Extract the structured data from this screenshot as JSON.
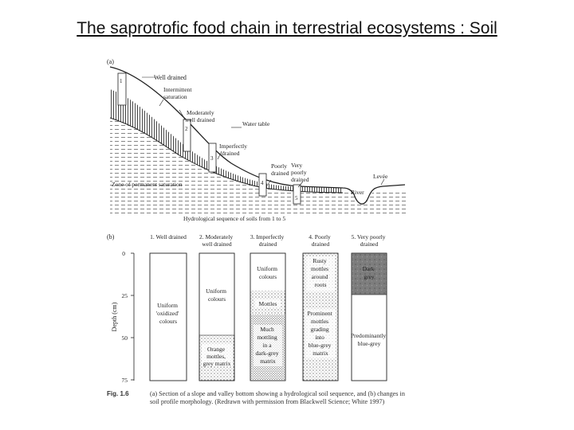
{
  "slide": {
    "title": "The saprotrofic food chain in terrestrial ecosystems : Soil"
  },
  "panel_a": {
    "label": "(a)",
    "annotations": {
      "well_drained": "Well drained",
      "intermittent": [
        "Intermittent",
        "saturation"
      ],
      "moderately": [
        "Moderately",
        "well drained"
      ],
      "water_table": "Water table",
      "imperfectly": [
        "Imperfectly",
        "drained"
      ],
      "poorly": [
        "Poorly",
        "drained"
      ],
      "very_poorly": [
        "Very",
        "poorly",
        "drained"
      ],
      "levee": "Levée",
      "river": "River",
      "zone": "Zone of permanent saturation"
    },
    "profile_numbers": [
      "1",
      "2",
      "3",
      "4",
      "5"
    ],
    "axis_caption": "Hydrological sequence of soils from 1 to 5"
  },
  "panel_b": {
    "label": "(b)",
    "y_axis_label": "Depth (cm)",
    "y_ticks": [
      "0",
      "25",
      "50",
      "75"
    ],
    "columns": [
      {
        "header": [
          "1. Well drained"
        ],
        "texts": [
          [
            "Uniform",
            "'oxidized'",
            "colours"
          ]
        ]
      },
      {
        "header": [
          "2. Moderately",
          "well drained"
        ],
        "texts": [
          [
            "Uniform",
            "colours"
          ],
          [
            "Orange",
            "mottles,",
            "grey matrix"
          ]
        ]
      },
      {
        "header": [
          "3. Imperfectly",
          "drained"
        ],
        "texts": [
          [
            "Uniform",
            "colours"
          ],
          [
            "Mottles"
          ],
          [
            "Much",
            "mottling",
            "in a",
            "dark-grey",
            "matrix"
          ]
        ]
      },
      {
        "header": [
          "4. Poorly",
          "drained"
        ],
        "texts": [
          [
            "Rusty",
            "mottles",
            "around",
            "roots"
          ],
          [
            "Prominent",
            "mottles",
            "grading",
            "into",
            "blue-grey",
            "matrix"
          ]
        ]
      },
      {
        "header": [
          "5. Very poorly",
          "drained"
        ],
        "texts": [
          [
            "Dark",
            "grey"
          ],
          [
            "Predominantly",
            "blue-grey"
          ]
        ]
      }
    ]
  },
  "caption": {
    "fig_label": "Fig. 1.6",
    "text": "(a) Section of a slope and valley bottom showing a hydrological soil sequence, and (b) changes in soil profile morphology. (Redrawn with permission from Blackwell Science; White 1997)"
  },
  "colors": {
    "ink": "#222222",
    "dark_grey_block": "#8c8c8c"
  }
}
